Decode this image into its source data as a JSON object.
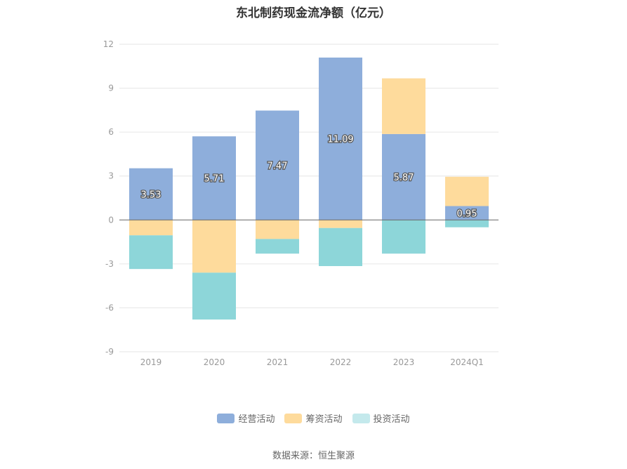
{
  "title": "东北制药现金流净额（亿元）",
  "source": "数据来源：恒生聚源",
  "chart_data": {
    "type": "bar",
    "stacked": true,
    "title": "东北制药现金流净额（亿元）",
    "categories": [
      "2019",
      "2020",
      "2021",
      "2022",
      "2023",
      "2024Q1"
    ],
    "series": [
      {
        "name": "经营活动",
        "color": "#8eaedb",
        "values": [
          3.53,
          5.71,
          7.47,
          11.09,
          5.87,
          0.95
        ],
        "labeled": true
      },
      {
        "name": "筹资活动",
        "color": "#fedb9c",
        "values": [
          -1.05,
          -3.6,
          -1.3,
          -0.55,
          3.8,
          2.0
        ],
        "labeled": false
      },
      {
        "name": "投资活动",
        "color": "#8dd6d9",
        "values": [
          -2.3,
          -3.2,
          -1.0,
          -2.6,
          -2.3,
          -0.5
        ],
        "labeled": false
      }
    ],
    "legend_colors": [
      "#8eaedb",
      "#fedb9c",
      "#c4e9ec"
    ],
    "yticks": [
      12,
      9,
      6,
      3,
      0,
      -3,
      -6,
      -9
    ],
    "ylim": [
      -9,
      12
    ],
    "grid": true,
    "legend_position": "bottom"
  }
}
